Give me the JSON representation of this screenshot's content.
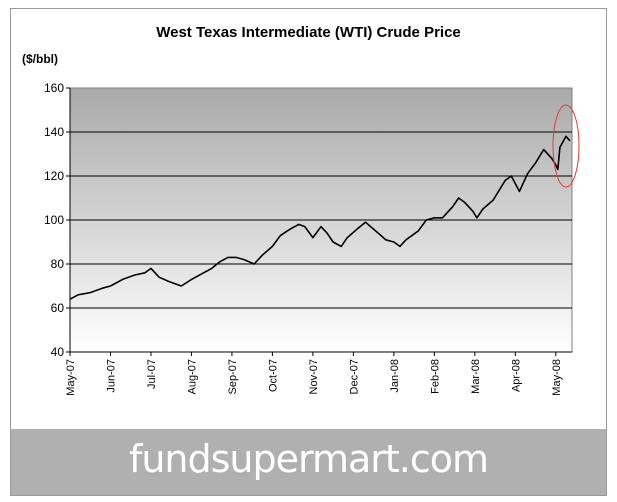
{
  "page": {
    "title": "West Texas Intermediate (WTI) Crude Price",
    "unit_label": "($/bbl)",
    "watermark": "fundsupermart.com"
  },
  "chart_data": {
    "type": "line",
    "title": "West Texas Intermediate (WTI) Crude Price",
    "ylabel": "($/bbl)",
    "xlabel": "",
    "ylim": [
      40,
      160
    ],
    "yticks": [
      40,
      60,
      80,
      100,
      120,
      140,
      160
    ],
    "grid": true,
    "x_tick_labels": [
      "May-07",
      "Jun-07",
      "Jul-07",
      "Aug-07",
      "Sep-07",
      "Oct-07",
      "Nov-07",
      "Dec-07",
      "Jan-08",
      "Feb-08",
      "Mar-08",
      "Apr-08",
      "May-08"
    ],
    "x_range": [
      0,
      12.4
    ],
    "annotation": "red-ellipse-highlight-recent-peak",
    "series": [
      {
        "color": "#000000",
        "x": [
          0,
          0.2,
          0.5,
          0.8,
          1.0,
          1.3,
          1.6,
          1.85,
          2.0,
          2.2,
          2.45,
          2.75,
          3.0,
          3.3,
          3.5,
          3.7,
          3.9,
          4.1,
          4.3,
          4.55,
          4.75,
          5.0,
          5.2,
          5.45,
          5.65,
          5.8,
          6.0,
          6.2,
          6.35,
          6.5,
          6.7,
          6.85,
          7.1,
          7.3,
          7.55,
          7.8,
          8.0,
          8.15,
          8.3,
          8.6,
          8.8,
          9.0,
          9.2,
          9.45,
          9.6,
          9.75,
          9.95,
          10.05,
          10.2,
          10.45,
          10.65,
          10.75,
          10.9,
          11.1,
          11.3,
          11.5,
          11.7,
          11.9,
          12.0,
          12.05,
          12.1,
          12.25,
          12.35
        ],
        "y": [
          64,
          66,
          67,
          69,
          70,
          73,
          75,
          76,
          78,
          74,
          72,
          70,
          73,
          76,
          78,
          81,
          83,
          83,
          82,
          80,
          84,
          88,
          93,
          96,
          98,
          97,
          92,
          97,
          94,
          90,
          88,
          92,
          96,
          99,
          95,
          91,
          90,
          88,
          91,
          95,
          100,
          101,
          101,
          106,
          110,
          108,
          104,
          101,
          105,
          109,
          115,
          118,
          120,
          113,
          121,
          126,
          132,
          128,
          125,
          123,
          133,
          138,
          136
        ]
      }
    ]
  }
}
